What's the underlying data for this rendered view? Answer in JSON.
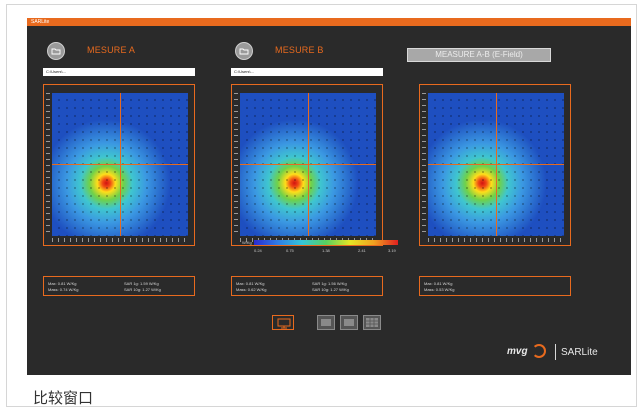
{
  "app": {
    "title": "SARLite"
  },
  "panels": [
    {
      "title": "MESURE A",
      "file_field": "C:\\Users\\...",
      "stats": {
        "max": "Max: 0.81 W/Kg",
        "mass": "Mass: 0.74 W/Kg",
        "sar1g": "SAR 1g: 1.59 W/Kg",
        "sar10g": "SAR 10g: 1.27 W/Kg"
      }
    },
    {
      "title": "MESURE B",
      "file_field": "C:\\Users\\...",
      "stats": {
        "max": "Max: 0.81 W/Kg",
        "mass": "Mass: 0.62 W/Kg",
        "sar1g": "SAR 1g: 1.56 W/Kg",
        "sar10g": "SAR 10g: 1.27 W/Kg"
      }
    },
    {
      "title": "MEASURE A-B (E-Field)",
      "stats": {
        "max": "Max: 0.81 W/Kg",
        "mass": "Mass: 0.53 W/Kg"
      }
    }
  ],
  "scale": {
    "unit": "W/Kg",
    "ticks": [
      "0.24",
      "0.75",
      "1.38",
      "2.41",
      "3.19"
    ]
  },
  "brand": {
    "mvg": "mvg",
    "product": "SARLite"
  },
  "caption": "比较窗口",
  "colors": {
    "accent": "#e86a1e",
    "background": "#2a2a2a"
  }
}
